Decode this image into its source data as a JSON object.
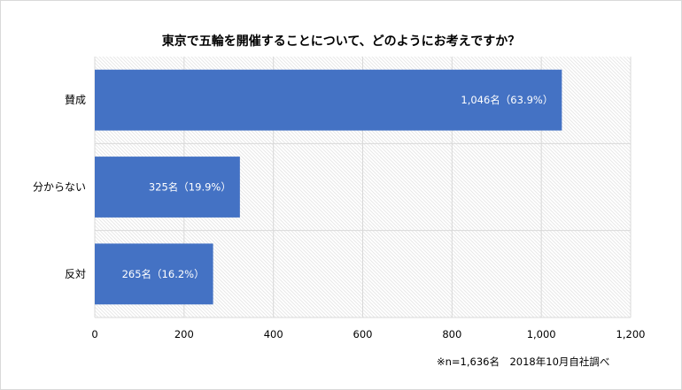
{
  "chart_data": {
    "type": "bar",
    "orientation": "horizontal",
    "title": "東京で五輪を開催することについて、どのようにお考えですか？",
    "categories": [
      "賛成",
      "分からない",
      "反対"
    ],
    "values": [
      1046,
      325,
      265
    ],
    "data_labels": [
      "1,046名（63.9%）",
      "325名（19.9%）",
      "265名（16.2%）"
    ],
    "xlim": [
      0,
      1200
    ],
    "x_ticks": [
      0,
      200,
      400,
      600,
      800,
      1000,
      1200
    ],
    "x_tick_labels": [
      "0",
      "200",
      "400",
      "600",
      "800",
      "1,000",
      "1,200"
    ],
    "grid": true,
    "bar_color": "#4472c4",
    "gridline_color": "#d9d9d9",
    "plot_background": "hatched light gray"
  },
  "footnote": "※n=1,636名　2018年10月自社調べ"
}
